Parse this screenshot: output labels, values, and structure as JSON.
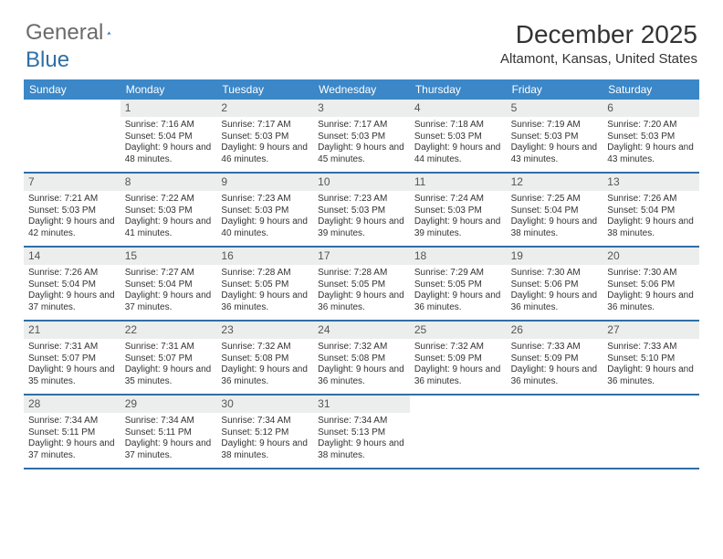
{
  "logo": {
    "text1": "General",
    "text2": "Blue"
  },
  "title": "December 2025",
  "location": "Altamont, Kansas, United States",
  "day_headers": [
    "Sunday",
    "Monday",
    "Tuesday",
    "Wednesday",
    "Thursday",
    "Friday",
    "Saturday"
  ],
  "colors": {
    "header_bg": "#3b87c8",
    "rule": "#2f6fa8",
    "daynum_bg": "#eceded",
    "text": "#333333"
  },
  "start_weekday": 1,
  "days": [
    {
      "n": 1,
      "sr": "7:16 AM",
      "ss": "5:04 PM",
      "dl": "9 hours and 48 minutes."
    },
    {
      "n": 2,
      "sr": "7:17 AM",
      "ss": "5:03 PM",
      "dl": "9 hours and 46 minutes."
    },
    {
      "n": 3,
      "sr": "7:17 AM",
      "ss": "5:03 PM",
      "dl": "9 hours and 45 minutes."
    },
    {
      "n": 4,
      "sr": "7:18 AM",
      "ss": "5:03 PM",
      "dl": "9 hours and 44 minutes."
    },
    {
      "n": 5,
      "sr": "7:19 AM",
      "ss": "5:03 PM",
      "dl": "9 hours and 43 minutes."
    },
    {
      "n": 6,
      "sr": "7:20 AM",
      "ss": "5:03 PM",
      "dl": "9 hours and 43 minutes."
    },
    {
      "n": 7,
      "sr": "7:21 AM",
      "ss": "5:03 PM",
      "dl": "9 hours and 42 minutes."
    },
    {
      "n": 8,
      "sr": "7:22 AM",
      "ss": "5:03 PM",
      "dl": "9 hours and 41 minutes."
    },
    {
      "n": 9,
      "sr": "7:23 AM",
      "ss": "5:03 PM",
      "dl": "9 hours and 40 minutes."
    },
    {
      "n": 10,
      "sr": "7:23 AM",
      "ss": "5:03 PM",
      "dl": "9 hours and 39 minutes."
    },
    {
      "n": 11,
      "sr": "7:24 AM",
      "ss": "5:03 PM",
      "dl": "9 hours and 39 minutes."
    },
    {
      "n": 12,
      "sr": "7:25 AM",
      "ss": "5:04 PM",
      "dl": "9 hours and 38 minutes."
    },
    {
      "n": 13,
      "sr": "7:26 AM",
      "ss": "5:04 PM",
      "dl": "9 hours and 38 minutes."
    },
    {
      "n": 14,
      "sr": "7:26 AM",
      "ss": "5:04 PM",
      "dl": "9 hours and 37 minutes."
    },
    {
      "n": 15,
      "sr": "7:27 AM",
      "ss": "5:04 PM",
      "dl": "9 hours and 37 minutes."
    },
    {
      "n": 16,
      "sr": "7:28 AM",
      "ss": "5:05 PM",
      "dl": "9 hours and 36 minutes."
    },
    {
      "n": 17,
      "sr": "7:28 AM",
      "ss": "5:05 PM",
      "dl": "9 hours and 36 minutes."
    },
    {
      "n": 18,
      "sr": "7:29 AM",
      "ss": "5:05 PM",
      "dl": "9 hours and 36 minutes."
    },
    {
      "n": 19,
      "sr": "7:30 AM",
      "ss": "5:06 PM",
      "dl": "9 hours and 36 minutes."
    },
    {
      "n": 20,
      "sr": "7:30 AM",
      "ss": "5:06 PM",
      "dl": "9 hours and 36 minutes."
    },
    {
      "n": 21,
      "sr": "7:31 AM",
      "ss": "5:07 PM",
      "dl": "9 hours and 35 minutes."
    },
    {
      "n": 22,
      "sr": "7:31 AM",
      "ss": "5:07 PM",
      "dl": "9 hours and 35 minutes."
    },
    {
      "n": 23,
      "sr": "7:32 AM",
      "ss": "5:08 PM",
      "dl": "9 hours and 36 minutes."
    },
    {
      "n": 24,
      "sr": "7:32 AM",
      "ss": "5:08 PM",
      "dl": "9 hours and 36 minutes."
    },
    {
      "n": 25,
      "sr": "7:32 AM",
      "ss": "5:09 PM",
      "dl": "9 hours and 36 minutes."
    },
    {
      "n": 26,
      "sr": "7:33 AM",
      "ss": "5:09 PM",
      "dl": "9 hours and 36 minutes."
    },
    {
      "n": 27,
      "sr": "7:33 AM",
      "ss": "5:10 PM",
      "dl": "9 hours and 36 minutes."
    },
    {
      "n": 28,
      "sr": "7:34 AM",
      "ss": "5:11 PM",
      "dl": "9 hours and 37 minutes."
    },
    {
      "n": 29,
      "sr": "7:34 AM",
      "ss": "5:11 PM",
      "dl": "9 hours and 37 minutes."
    },
    {
      "n": 30,
      "sr": "7:34 AM",
      "ss": "5:12 PM",
      "dl": "9 hours and 38 minutes."
    },
    {
      "n": 31,
      "sr": "7:34 AM",
      "ss": "5:13 PM",
      "dl": "9 hours and 38 minutes."
    }
  ],
  "labels": {
    "sunrise": "Sunrise:",
    "sunset": "Sunset:",
    "daylight": "Daylight:"
  }
}
